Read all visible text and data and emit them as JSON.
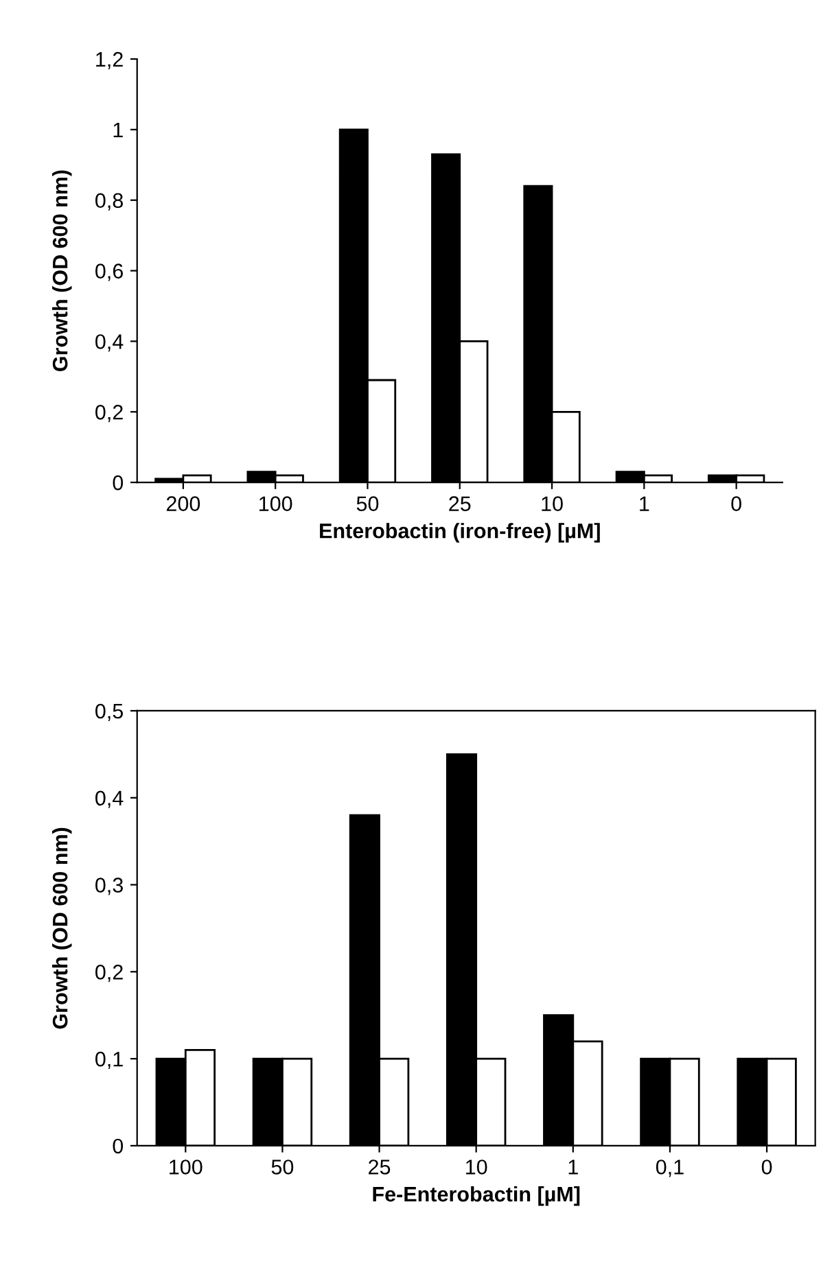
{
  "chart_data": [
    {
      "type": "bar",
      "xlabel": "Enterobactin (iron-free) [µM]",
      "ylabel": "Growth (OD 600 nm)",
      "categories": [
        "200",
        "100",
        "50",
        "25",
        "10",
        "1",
        "0"
      ],
      "series": [
        {
          "color": "#000000",
          "values": [
            0.01,
            0.03,
            1.0,
            0.93,
            0.84,
            0.03,
            0.02
          ]
        },
        {
          "color": "#ffffff",
          "values": [
            0.02,
            0.02,
            0.29,
            0.4,
            0.2,
            0.02,
            0.02
          ]
        }
      ],
      "ylim": [
        0,
        1.2
      ],
      "yticks": [
        0,
        {
          "value": 0.2,
          "label": "0,2"
        },
        {
          "value": 0.4,
          "label": "0,4"
        },
        {
          "value": 0.6,
          "label": "0,6"
        },
        {
          "value": 0.8,
          "label": "0,8"
        },
        1,
        {
          "value": 1.2,
          "label": "1,2"
        }
      ],
      "grid": false,
      "legend": false
    },
    {
      "type": "bar",
      "xlabel": "Fe-Enterobactin [µM]",
      "ylabel": "Growth (OD 600 nm)",
      "categories": [
        "100",
        "50",
        "25",
        "10",
        "1",
        "0,1",
        "0"
      ],
      "series": [
        {
          "color": "#000000",
          "values": [
            0.1,
            0.1,
            0.38,
            0.45,
            0.15,
            0.1,
            0.1
          ]
        },
        {
          "color": "#ffffff",
          "values": [
            0.11,
            0.1,
            0.1,
            0.1,
            0.12,
            0.1,
            0.1
          ]
        }
      ],
      "ylim": [
        0,
        0.5
      ],
      "yticks": [
        0,
        {
          "value": 0.1,
          "label": "0,1"
        },
        {
          "value": 0.2,
          "label": "0,2"
        },
        {
          "value": 0.3,
          "label": "0,3"
        },
        {
          "value": 0.4,
          "label": "0,4"
        },
        {
          "value": 0.5,
          "label": "0,5"
        }
      ],
      "grid": false,
      "legend": false
    }
  ]
}
